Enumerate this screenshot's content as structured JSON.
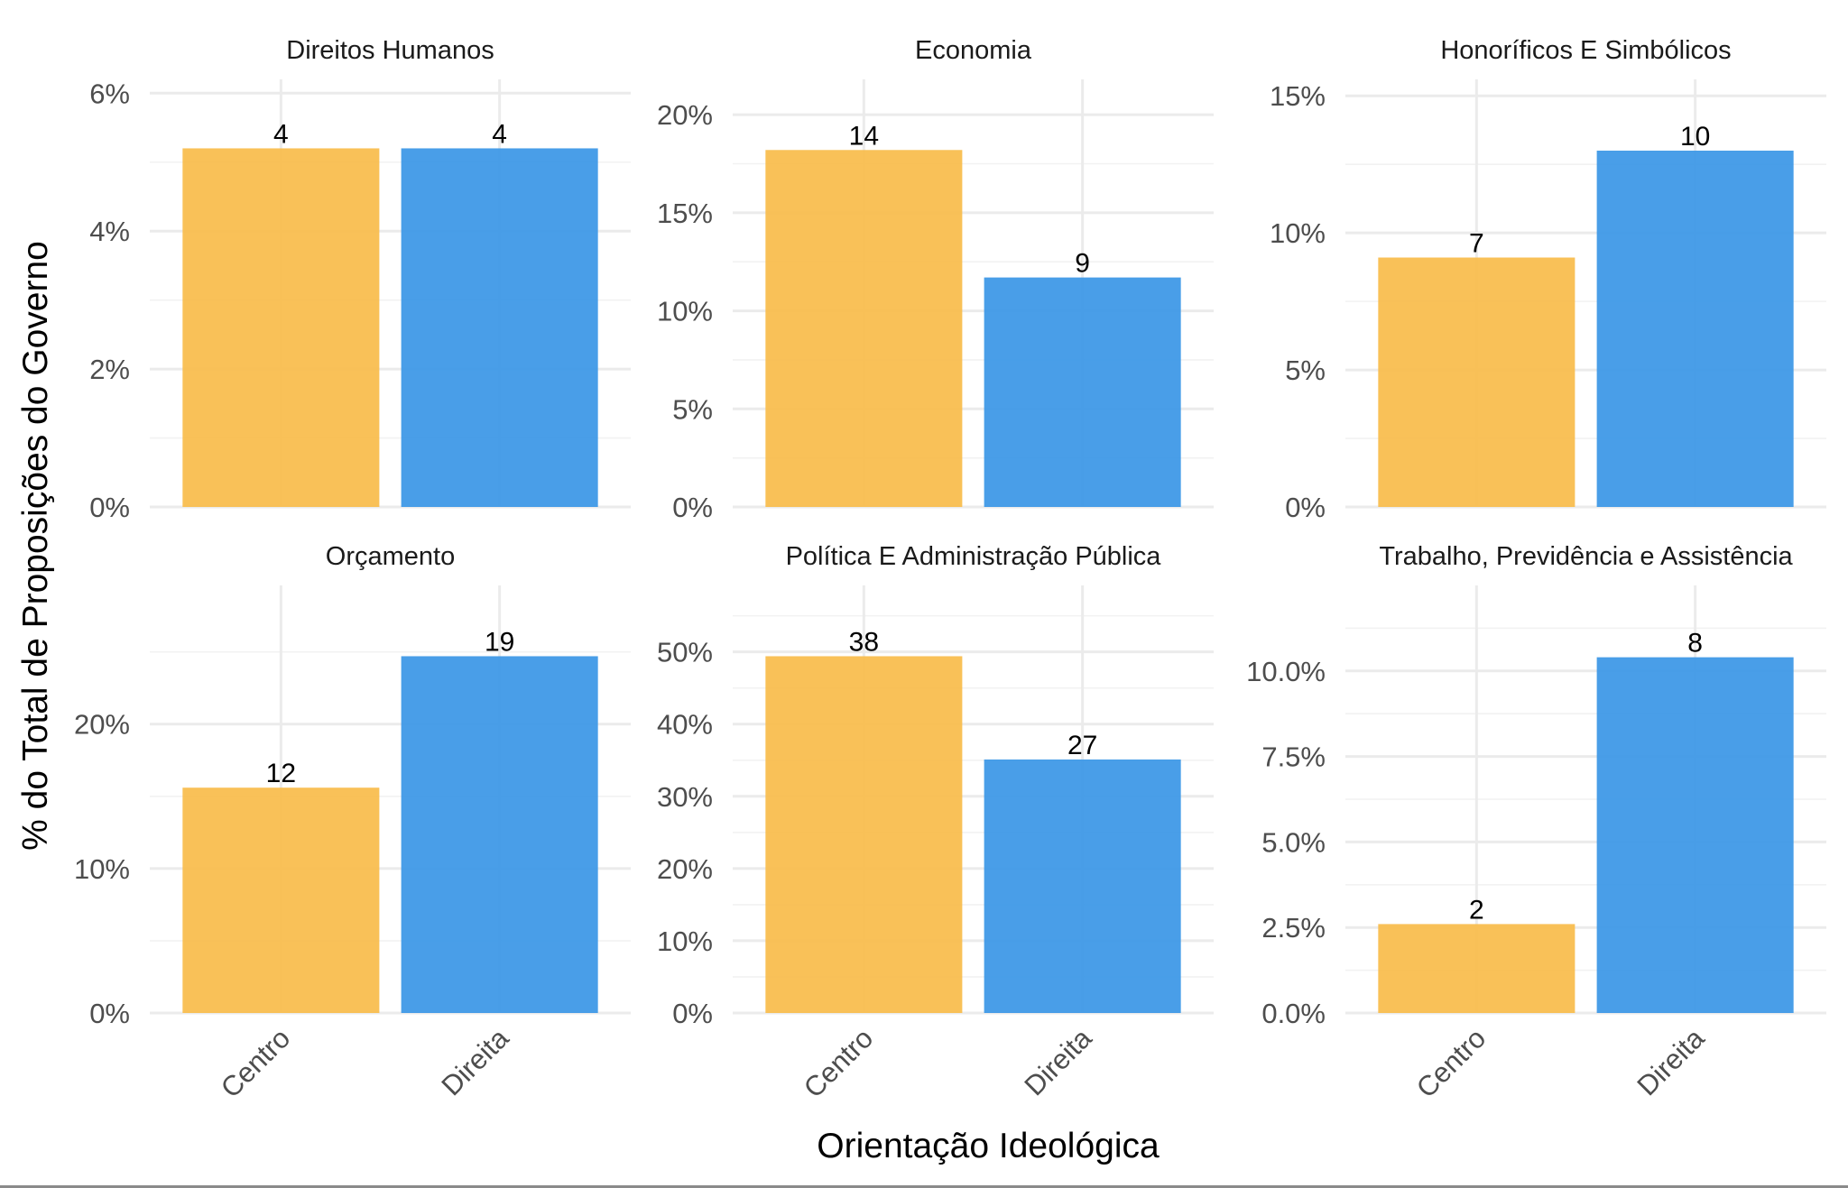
{
  "chart_data": {
    "type": "bar",
    "layout": "facet-grid 2x3, free y scales",
    "xlabel": "Orientação Ideológica",
    "ylabel": "% do Total de Proposições do Governo",
    "categories": [
      "Centro",
      "Direita"
    ],
    "colors": {
      "Centro": "#F9BC4A",
      "Direita": "#3A96E6"
    },
    "grid": true,
    "legend": "none",
    "panels": [
      {
        "title": "Direitos Humanos",
        "values_pct": [
          5.2,
          5.2
        ],
        "counts": [
          "4",
          "4"
        ],
        "yticks": [
          0,
          2,
          4,
          6
        ],
        "ytick_labels": [
          "0%",
          "2%",
          "4%",
          "6%"
        ],
        "ylim": [
          0,
          6.2
        ]
      },
      {
        "title": "Economia",
        "values_pct": [
          18.2,
          11.7
        ],
        "counts": [
          "14",
          "9"
        ],
        "yticks": [
          0,
          5,
          10,
          15,
          20
        ],
        "ytick_labels": [
          "0%",
          "5%",
          "10%",
          "15%",
          "20%"
        ],
        "ylim": [
          0,
          21.8
        ]
      },
      {
        "title": "Honoríficos E Simbólicos",
        "values_pct": [
          9.1,
          13.0
        ],
        "counts": [
          "7",
          "10"
        ],
        "yticks": [
          0,
          5,
          10,
          15
        ],
        "ytick_labels": [
          "0%",
          "5%",
          "10%",
          "15%"
        ],
        "ylim": [
          0,
          15.6
        ]
      },
      {
        "title": "Orçamento",
        "values_pct": [
          15.6,
          24.7
        ],
        "counts": [
          "12",
          "19"
        ],
        "yticks": [
          0,
          10,
          20
        ],
        "ytick_labels": [
          "0%",
          "10%",
          "20%"
        ],
        "ylim": [
          0,
          29.6
        ]
      },
      {
        "title": "Política E Administração Pública",
        "values_pct": [
          49.4,
          35.1
        ],
        "counts": [
          "38",
          "27"
        ],
        "yticks": [
          0,
          10,
          20,
          30,
          40,
          50
        ],
        "ytick_labels": [
          "0%",
          "10%",
          "20%",
          "30%",
          "40%",
          "50%"
        ],
        "ylim": [
          0,
          59.2
        ]
      },
      {
        "title": "Trabalho, Previdência e Assistência",
        "values_pct": [
          2.6,
          10.4
        ],
        "counts": [
          "2",
          "8"
        ],
        "yticks": [
          0,
          2.5,
          5,
          7.5,
          10
        ],
        "ytick_labels": [
          "0.0%",
          "2.5%",
          "5.0%",
          "7.5%",
          "10.0%"
        ],
        "ylim": [
          0,
          12.5
        ]
      }
    ]
  }
}
